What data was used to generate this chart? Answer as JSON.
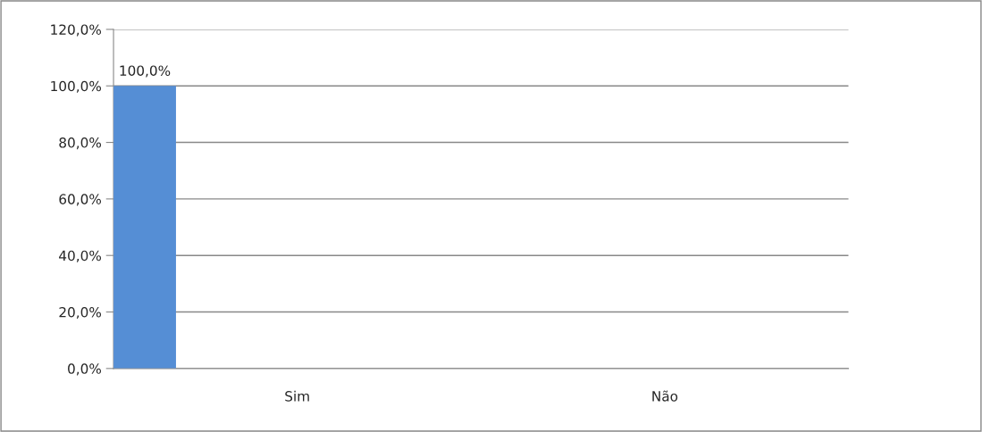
{
  "chart_data": {
    "type": "bar",
    "categories": [
      "Sim",
      "Não"
    ],
    "series": [
      {
        "color": "#558ed5",
        "values": [
          100,
          null
        ],
        "value_labels": [
          "100,0%",
          null
        ]
      }
    ],
    "ylim": [
      0,
      120
    ],
    "yticks": [
      {
        "value": 0,
        "label": "0,0%"
      },
      {
        "value": 20,
        "label": "20,0%"
      },
      {
        "value": 40,
        "label": "40,0%"
      },
      {
        "value": 60,
        "label": "60,0%"
      },
      {
        "value": 80,
        "label": "80,0%"
      },
      {
        "value": 100,
        "label": "100,0%"
      },
      {
        "value": 120,
        "label": "120,0%"
      }
    ],
    "grid": "y"
  }
}
